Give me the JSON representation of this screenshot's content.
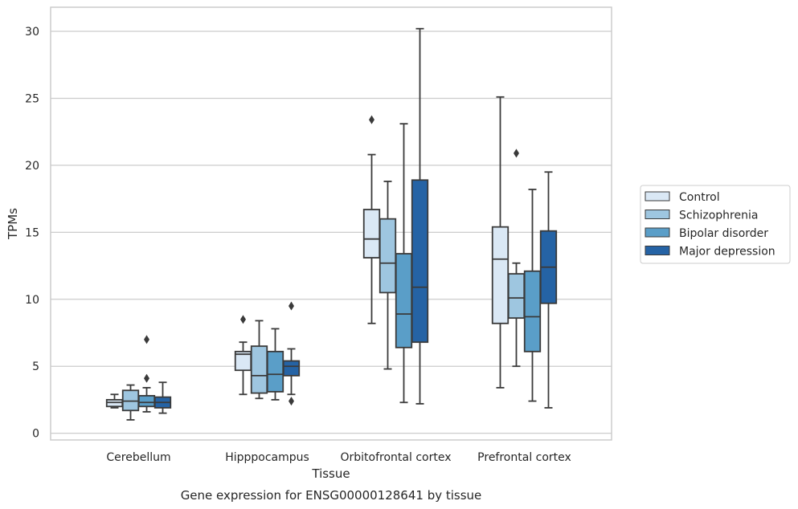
{
  "caption": "Gene expression for ENSG00000128641 by tissue",
  "chart_data": {
    "type": "box",
    "xlabel": "Tissue",
    "ylabel": "TPMs",
    "ylim": [
      -0.5,
      31.8
    ],
    "yticks": [
      0,
      5,
      10,
      15,
      20,
      25,
      30
    ],
    "grid": true,
    "legend_position": "right",
    "categories": [
      "Cerebellum",
      "Hipppocampus",
      "Orbitofrontal cortex",
      "Prefrontal cortex"
    ],
    "series": [
      {
        "name": "Control",
        "color": "#dae8f5",
        "boxes": [
          {
            "whislo": 1.9,
            "q1": 2.0,
            "med": 2.3,
            "q3": 2.5,
            "whishi": 2.9,
            "fliers": []
          },
          {
            "whislo": 2.9,
            "q1": 4.7,
            "med": 5.9,
            "q3": 6.1,
            "whishi": 6.8,
            "fliers": [
              8.5
            ]
          },
          {
            "whislo": 8.2,
            "q1": 13.1,
            "med": 14.5,
            "q3": 16.7,
            "whishi": 20.8,
            "fliers": [
              23.4
            ]
          },
          {
            "whislo": 3.4,
            "q1": 8.2,
            "med": 13.0,
            "q3": 15.4,
            "whishi": 25.1,
            "fliers": []
          }
        ]
      },
      {
        "name": "Schizophrenia",
        "color": "#9ec6e0",
        "boxes": [
          {
            "whislo": 1.0,
            "q1": 1.7,
            "med": 2.4,
            "q3": 3.2,
            "whishi": 3.6,
            "fliers": []
          },
          {
            "whislo": 2.6,
            "q1": 3.0,
            "med": 4.3,
            "q3": 6.5,
            "whishi": 8.4,
            "fliers": []
          },
          {
            "whislo": 4.8,
            "q1": 10.5,
            "med": 12.7,
            "q3": 16.0,
            "whishi": 18.8,
            "fliers": []
          },
          {
            "whislo": 5.0,
            "q1": 8.6,
            "med": 10.1,
            "q3": 11.9,
            "whishi": 12.7,
            "fliers": [
              20.9
            ]
          }
        ]
      },
      {
        "name": "Bipolar disorder",
        "color": "#5a9ec8",
        "boxes": [
          {
            "whislo": 1.6,
            "q1": 2.0,
            "med": 2.3,
            "q3": 2.8,
            "whishi": 3.4,
            "fliers": [
              4.1,
              7.0
            ]
          },
          {
            "whislo": 2.5,
            "q1": 3.1,
            "med": 4.4,
            "q3": 6.1,
            "whishi": 7.8,
            "fliers": []
          },
          {
            "whislo": 2.3,
            "q1": 6.4,
            "med": 8.9,
            "q3": 13.4,
            "whishi": 23.1,
            "fliers": []
          },
          {
            "whislo": 2.4,
            "q1": 6.1,
            "med": 8.7,
            "q3": 12.1,
            "whishi": 18.2,
            "fliers": []
          }
        ]
      },
      {
        "name": "Major depression",
        "color": "#2563a5",
        "boxes": [
          {
            "whislo": 1.5,
            "q1": 1.9,
            "med": 2.3,
            "q3": 2.7,
            "whishi": 3.8,
            "fliers": []
          },
          {
            "whislo": 2.9,
            "q1": 4.3,
            "med": 5.0,
            "q3": 5.4,
            "whishi": 6.3,
            "fliers": [
              2.4,
              9.5
            ]
          },
          {
            "whislo": 2.2,
            "q1": 6.8,
            "med": 10.9,
            "q3": 18.9,
            "whishi": 30.2,
            "fliers": []
          },
          {
            "whislo": 1.9,
            "q1": 9.7,
            "med": 12.4,
            "q3": 15.1,
            "whishi": 19.5,
            "fliers": []
          }
        ]
      }
    ]
  }
}
